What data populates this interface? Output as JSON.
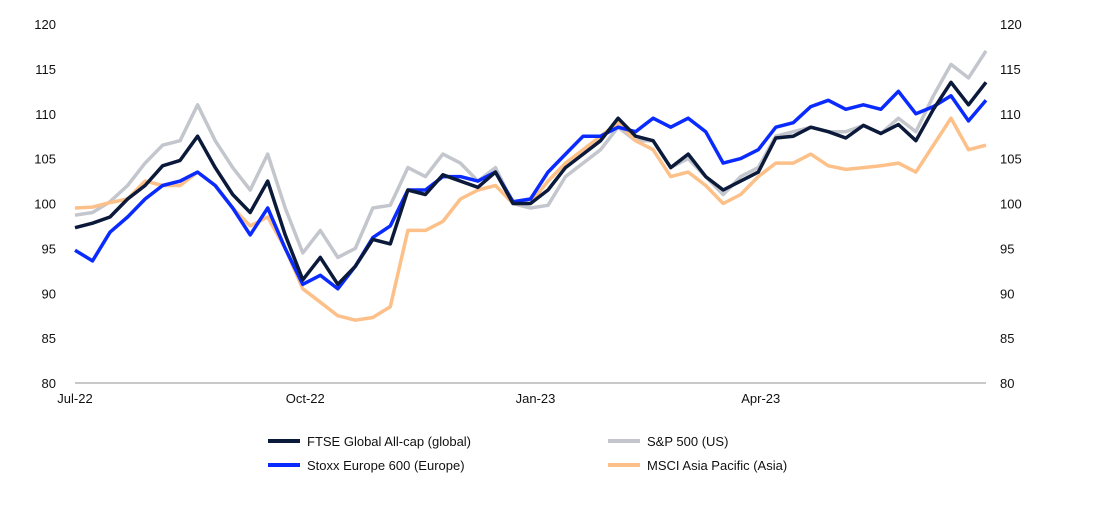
{
  "chart_data": {
    "type": "line",
    "title": "",
    "xlabel": "",
    "ylabel": "",
    "ylim": [
      80,
      120
    ],
    "yticks": [
      80,
      85,
      90,
      95,
      100,
      105,
      110,
      115,
      120
    ],
    "y_axes": "left and right (mirrored)",
    "grid": false,
    "legend_placement": "bottom",
    "x_tick_labels": [
      {
        "date": "2022-07-01",
        "label": "Jul-22"
      },
      {
        "date": "2022-10-01",
        "label": "Oct-22"
      },
      {
        "date": "2023-01-01",
        "label": "Jan-23"
      },
      {
        "date": "2023-04-01",
        "label": "Apr-23"
      }
    ],
    "x": [
      "2022-07-01",
      "2022-07-08",
      "2022-07-15",
      "2022-07-22",
      "2022-07-29",
      "2022-08-05",
      "2022-08-12",
      "2022-08-19",
      "2022-08-26",
      "2022-09-02",
      "2022-09-09",
      "2022-09-16",
      "2022-09-23",
      "2022-09-30",
      "2022-10-07",
      "2022-10-14",
      "2022-10-21",
      "2022-10-28",
      "2022-11-04",
      "2022-11-11",
      "2022-11-18",
      "2022-11-25",
      "2022-12-02",
      "2022-12-09",
      "2022-12-16",
      "2022-12-23",
      "2022-12-30",
      "2023-01-06",
      "2023-01-13",
      "2023-01-20",
      "2023-01-27",
      "2023-02-03",
      "2023-02-10",
      "2023-02-17",
      "2023-02-24",
      "2023-03-03",
      "2023-03-10",
      "2023-03-17",
      "2023-03-24",
      "2023-03-31",
      "2023-04-07",
      "2023-04-14",
      "2023-04-21",
      "2023-04-28",
      "2023-05-05",
      "2023-05-12",
      "2023-05-19",
      "2023-05-26",
      "2023-06-02",
      "2023-06-09",
      "2023-06-16",
      "2023-06-23",
      "2023-06-30"
    ],
    "series": [
      {
        "name": "S&P 500 (US)",
        "color": "#c3c6cc",
        "values": [
          98.7,
          99,
          100.2,
          102,
          104.5,
          106.5,
          107,
          111,
          107,
          104,
          101.5,
          105.5,
          99.5,
          94.5,
          97,
          94,
          95,
          99.5,
          99.8,
          104,
          103,
          105.5,
          104.5,
          102.5,
          104,
          100,
          99.5,
          99.8,
          103,
          104.5,
          106,
          108.5,
          107,
          107,
          104,
          105,
          103,
          101,
          103,
          104,
          107.5,
          108,
          108.5,
          108,
          108,
          108.7,
          107.8,
          109.5,
          108,
          112,
          115.5,
          114,
          117
        ]
      },
      {
        "name": "MSCI Asia Pacific (Asia)",
        "color": "#fcc088",
        "values": [
          99.5,
          99.6,
          100.1,
          100.5,
          102.5,
          102,
          102,
          103.5,
          102,
          99.5,
          97.5,
          98.5,
          95,
          90.5,
          89,
          87.5,
          87,
          87.3,
          88.5,
          97,
          97,
          98,
          100.5,
          101.5,
          102,
          100,
          100,
          102.5,
          104.5,
          106,
          107.5,
          109,
          107,
          106,
          103,
          103.5,
          102,
          100,
          101,
          103,
          104.5,
          104.5,
          105.5,
          104.2,
          103.8,
          104,
          104.2,
          104.5,
          103.5,
          106.5,
          109.5,
          106,
          106.5
        ]
      },
      {
        "name": "Stoxx Europe 600 (Europe)",
        "color": "#0a2bff",
        "values": [
          94.8,
          93.6,
          96.8,
          98.5,
          100.5,
          102,
          102.5,
          103.5,
          102,
          99.5,
          96.5,
          99.5,
          95,
          91,
          92,
          90.5,
          93,
          96.2,
          97.5,
          101.5,
          101.5,
          103,
          103,
          102.5,
          103.5,
          100.2,
          100.5,
          103.5,
          105.5,
          107.5,
          107.5,
          108.5,
          108,
          109.5,
          108.5,
          109.5,
          108,
          104.5,
          105,
          106,
          108.5,
          109,
          110.8,
          111.5,
          110.5,
          111,
          110.5,
          112.5,
          110,
          110.8,
          112,
          109.2,
          111.5
        ]
      },
      {
        "name": "FTSE Global All-cap (global)",
        "color": "#0b1a3a",
        "values": [
          97.3,
          97.8,
          98.5,
          100.5,
          102,
          104.2,
          104.8,
          107.5,
          104,
          101,
          99,
          102.5,
          96.5,
          91.5,
          94,
          91,
          93,
          96,
          95.5,
          101.5,
          101,
          103.2,
          102.5,
          101.8,
          103.5,
          100,
          100,
          101.5,
          104,
          105.5,
          107,
          109.5,
          107.5,
          107,
          104,
          105.5,
          103,
          101.5,
          102.5,
          103.5,
          107.3,
          107.5,
          108.5,
          108,
          107.3,
          108.7,
          107.8,
          108.8,
          107,
          110.5,
          113.5,
          111,
          113.5
        ]
      }
    ]
  },
  "legend": [
    {
      "label": "FTSE Global All-cap (global)",
      "color": "#0b1a3a"
    },
    {
      "label": "S&P 500 (US)",
      "color": "#c3c6cc"
    },
    {
      "label": "Stoxx Europe 600 (Europe)",
      "color": "#0a2bff"
    },
    {
      "label": "MSCI Asia Pacific (Asia)",
      "color": "#fcc088"
    }
  ]
}
